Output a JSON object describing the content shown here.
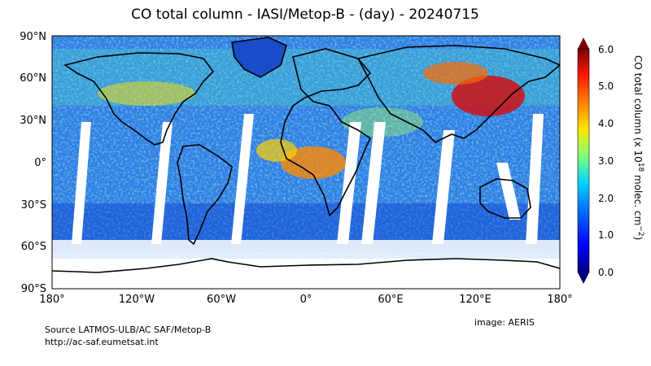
{
  "title": "CO total column - IASI/Metop-B - (day) - 20240715",
  "lat_labels": [
    "90°N",
    "60°N",
    "30°N",
    "0°",
    "30°S",
    "60°S",
    "90°S"
  ],
  "lon_labels": [
    "180°",
    "120°W",
    "60°W",
    "0°",
    "60°E",
    "120°E",
    "180°"
  ],
  "colorbar": {
    "label_main": "CO total column (x 10",
    "label_sup": "18",
    "label_mid": " molec. cm",
    "label_sup2": "−2",
    "label_end": ")",
    "ticks": [
      "0.0",
      "1.0",
      "2.0",
      "3.0",
      "4.0",
      "5.0",
      "6.0"
    ],
    "min": 0,
    "max": 6
  },
  "credits": {
    "source": "Source LATMOS-ULB/AC SAF/Metop-B",
    "url": "http://ac-saf.eumetsat.int",
    "image": "image: AERIS"
  },
  "colors": {
    "ocean_base": "#2f7fe0",
    "high_co": "#d01010",
    "land_outline": "#000000"
  }
}
